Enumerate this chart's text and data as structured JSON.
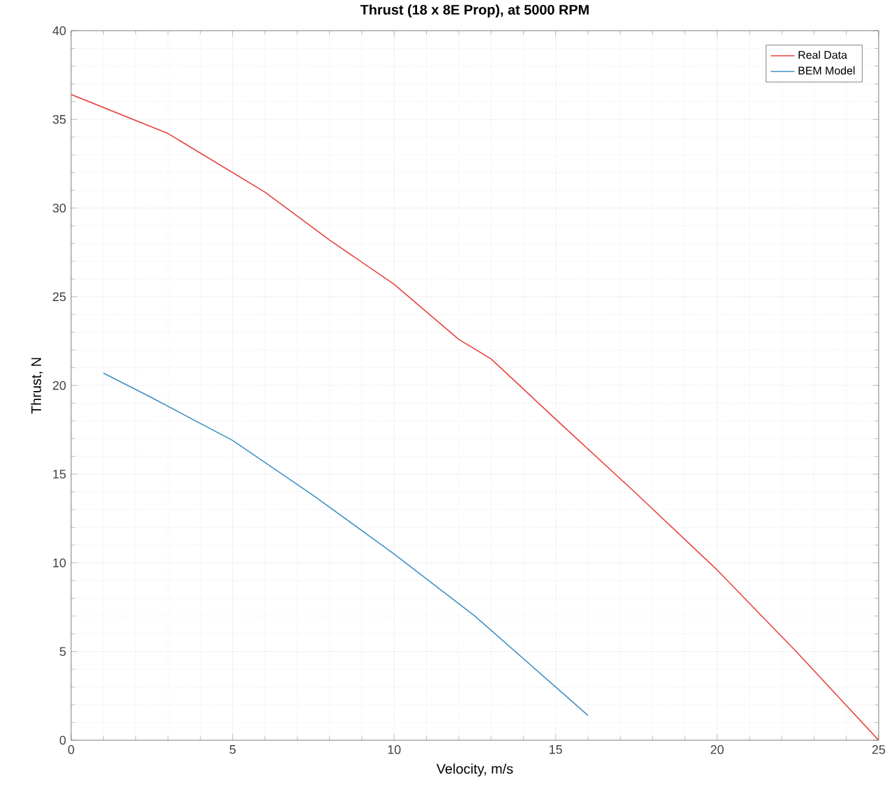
{
  "chart_data": {
    "type": "line",
    "title": "Thrust (18 x 8E Prop), at 5000 RPM",
    "xlabel": "Velocity, m/s",
    "ylabel": "Thrust, N",
    "series": [
      {
        "name": "Real Data",
        "color": "#e8413c",
        "x": [
          0,
          3,
          6,
          8,
          10,
          12,
          13,
          15,
          17.5,
          20,
          22.5,
          25
        ],
        "values": [
          36.4,
          34.2,
          30.9,
          28.2,
          25.7,
          22.6,
          21.5,
          18.1,
          13.9,
          9.6,
          4.9,
          0
        ]
      },
      {
        "name": "BEM Model",
        "color": "#3d8fc4",
        "x": [
          1,
          2.4,
          5,
          7.5,
          10,
          12.5,
          15,
          16
        ],
        "values": [
          20.7,
          19.4,
          16.9,
          13.8,
          10.5,
          7.0,
          3.0,
          1.4
        ]
      }
    ],
    "xlim": [
      0,
      25
    ],
    "ylim": [
      0,
      40
    ],
    "xticks": [
      0,
      5,
      10,
      15,
      20,
      25
    ],
    "yticks": [
      0,
      5,
      10,
      15,
      20,
      25,
      30,
      35,
      40
    ],
    "grid": true,
    "legend": "top right",
    "marker": "none",
    "line_style": "solid"
  }
}
